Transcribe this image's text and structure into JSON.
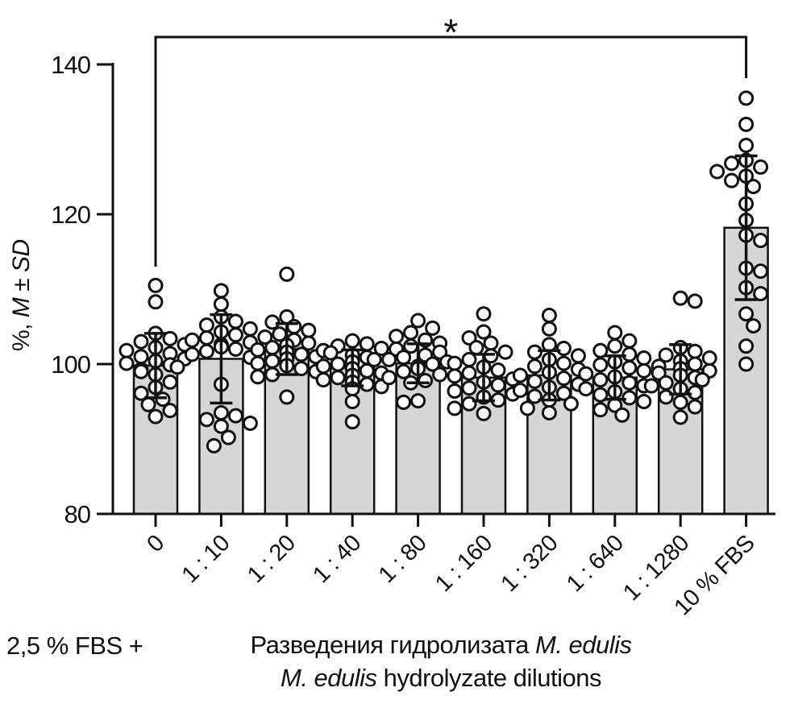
{
  "axes": {
    "ylabel_prefix": "%, ",
    "ylabel_m": "M",
    "ylabel_pm": " ± ",
    "ylabel_sd": "SD"
  },
  "footer": {
    "left_label": "2,5 % FBS +",
    "xlabel_ru_prefix": "Разведения гидролизата ",
    "xlabel_ru_italic": "M. edulis",
    "xlabel_en_italic": "M. edulis",
    "xlabel_en_suffix": " hydrolyzate dilutions"
  },
  "chart_data": {
    "type": "bar",
    "subtype": "bar-with-scatter-and-errorbars",
    "title": "",
    "ylabel": "%, M ± SD",
    "xlabel": "Разведения гидролизата M. edulis / M. edulis hydrolyzate dilutions",
    "ylim": [
      80,
      145
    ],
    "y_ticks": [
      80,
      100,
      120,
      140
    ],
    "grid": false,
    "legend": "none",
    "bar_fill": "#d6d6d6",
    "stroke": "#111111",
    "categories": [
      "0",
      "1 : 10",
      "1 : 20",
      "1 : 40",
      "1 : 80",
      "1 : 160",
      "1 : 320",
      "1 : 640",
      "1 : 1280",
      "10 % FBS"
    ],
    "means": [
      99.8,
      100.7,
      102.0,
      99.5,
      100.1,
      98.2,
      98.5,
      98.2,
      99.3,
      118.2
    ],
    "sd": [
      4.3,
      5.9,
      3.4,
      2.4,
      2.6,
      3.1,
      3.3,
      2.9,
      3.3,
      9.6
    ],
    "points": [
      [
        110.5,
        108.3,
        104.1,
        103.4,
        103.0,
        102.6,
        102.2,
        101.8,
        101.4,
        101.0,
        100.7,
        100.4,
        100.1,
        99.9,
        99.6,
        99.3,
        99.0,
        98.6,
        97.6,
        96.9,
        96.1,
        95.3,
        94.6,
        93.8,
        93.0
      ],
      [
        109.8,
        108.0,
        106.3,
        105.7,
        105.2,
        104.7,
        104.3,
        103.9,
        103.5,
        103.2,
        102.9,
        102.6,
        102.3,
        102.0,
        101.7,
        101.3,
        100.9,
        97.3,
        93.5,
        93.1,
        92.6,
        92.1,
        91.7,
        90.2,
        89.1
      ],
      [
        112.0,
        106.3,
        105.6,
        105.0,
        104.5,
        104.0,
        103.6,
        103.2,
        102.8,
        102.5,
        102.2,
        101.9,
        101.6,
        101.3,
        101.0,
        100.7,
        100.4,
        100.1,
        99.8,
        99.4,
        99.0,
        98.6,
        98.3,
        95.6
      ],
      [
        103.1,
        102.7,
        102.4,
        102.1,
        101.8,
        101.5,
        101.2,
        100.9,
        100.6,
        100.3,
        100.0,
        99.7,
        99.4,
        99.1,
        98.8,
        98.5,
        98.2,
        97.9,
        97.6,
        97.3,
        97.0,
        96.7,
        95.0,
        92.3
      ],
      [
        105.8,
        104.8,
        104.2,
        103.7,
        103.2,
        102.8,
        102.4,
        102.0,
        101.6,
        101.2,
        100.9,
        100.6,
        100.3,
        100.0,
        99.7,
        99.4,
        99.0,
        98.6,
        98.2,
        97.8,
        97.5,
        95.1,
        94.9
      ],
      [
        106.7,
        104.3,
        103.5,
        102.8,
        102.2,
        101.6,
        101.1,
        100.6,
        100.1,
        99.6,
        99.2,
        98.8,
        98.4,
        98.0,
        97.6,
        97.2,
        96.8,
        96.4,
        96.0,
        95.6,
        95.2,
        94.7,
        94.1,
        93.4
      ],
      [
        106.5,
        104.7,
        102.6,
        102.1,
        101.6,
        101.1,
        100.6,
        100.1,
        99.7,
        99.3,
        98.9,
        98.5,
        98.1,
        97.7,
        97.3,
        96.9,
        96.5,
        96.1,
        95.7,
        95.2,
        94.7,
        94.1,
        93.5
      ],
      [
        104.2,
        103.1,
        102.4,
        101.8,
        101.3,
        100.8,
        100.3,
        99.9,
        99.5,
        99.1,
        98.7,
        98.3,
        97.9,
        97.5,
        97.1,
        96.7,
        96.3,
        95.9,
        95.5,
        95.0,
        94.5,
        93.9,
        93.2
      ],
      [
        108.8,
        108.4,
        102.2,
        101.7,
        101.2,
        100.8,
        100.4,
        100.0,
        99.7,
        99.4,
        99.1,
        98.8,
        98.5,
        98.2,
        97.9,
        97.5,
        97.1,
        96.7,
        96.2,
        95.6,
        94.9,
        94.3,
        92.9
      ],
      [
        135.5,
        132.0,
        129.2,
        127.2,
        126.8,
        126.3,
        125.7,
        125.1,
        124.5,
        123.7,
        121.4,
        119.2,
        117.2,
        116.5,
        112.8,
        112.4,
        110.2,
        109.4,
        106.7,
        105.1,
        102.4,
        100.0
      ]
    ],
    "significance": {
      "label": "*",
      "from": "0",
      "to": "10 % FBS"
    }
  }
}
